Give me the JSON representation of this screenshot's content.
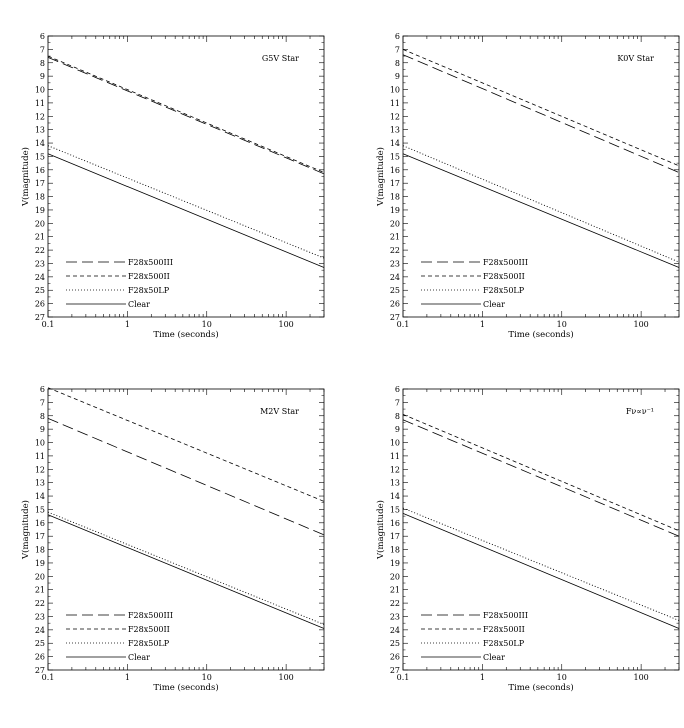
{
  "figure": {
    "background": "#ffffff",
    "ink": "#000000"
  },
  "line_styles": {
    "F28x500III": "long-dash",
    "F28x500II": "short-dash",
    "F28x50LP": "dotted",
    "Clear": "solid"
  },
  "chart_data": [
    {
      "type": "line",
      "annotation": "G5V Star",
      "xlabel": "Time (seconds)",
      "ylabel": "V(magnitude)",
      "xscale": "log",
      "xlim": [
        0.1,
        300
      ],
      "ylim": [
        27,
        6
      ],
      "y_inverted": true,
      "xtick_labels": [
        "0.1",
        "1",
        "10",
        "100"
      ],
      "ytick_labels": [
        "6",
        "7",
        "8",
        "9",
        "10",
        "11",
        "12",
        "13",
        "14",
        "15",
        "16",
        "17",
        "18",
        "19",
        "20",
        "21",
        "22",
        "23",
        "24",
        "25",
        "26",
        "27"
      ],
      "grid": false,
      "legend_position": "bottom-left",
      "series": [
        {
          "name": "F28x500III",
          "x": [
            0.1,
            300
          ],
          "y": [
            7.6,
            16.3
          ]
        },
        {
          "name": "F28x500II",
          "x": [
            0.1,
            300
          ],
          "y": [
            7.5,
            16.2
          ]
        },
        {
          "name": "F28x50LP",
          "x": [
            0.1,
            300
          ],
          "y": [
            14.2,
            22.6
          ]
        },
        {
          "name": "Clear",
          "x": [
            0.1,
            300
          ],
          "y": [
            14.8,
            23.3
          ]
        }
      ]
    },
    {
      "type": "line",
      "annotation": "K0V Star",
      "xlabel": "Time (seconds)",
      "ylabel": "V(magnitude)",
      "xscale": "log",
      "xlim": [
        0.1,
        300
      ],
      "ylim": [
        27,
        6
      ],
      "y_inverted": true,
      "xtick_labels": [
        "0.1",
        "1",
        "10",
        "100"
      ],
      "ytick_labels": [
        "6",
        "7",
        "8",
        "9",
        "10",
        "11",
        "12",
        "13",
        "14",
        "15",
        "16",
        "17",
        "18",
        "19",
        "20",
        "21",
        "22",
        "23",
        "24",
        "25",
        "26",
        "27"
      ],
      "grid": false,
      "legend_position": "bottom-left",
      "series": [
        {
          "name": "F28x500III",
          "x": [
            0.1,
            300
          ],
          "y": [
            7.4,
            16.2
          ]
        },
        {
          "name": "F28x500II",
          "x": [
            0.1,
            300
          ],
          "y": [
            7.0,
            15.7
          ]
        },
        {
          "name": "F28x50LP",
          "x": [
            0.1,
            300
          ],
          "y": [
            14.2,
            22.9
          ]
        },
        {
          "name": "Clear",
          "x": [
            0.1,
            300
          ],
          "y": [
            14.8,
            23.3
          ]
        }
      ]
    },
    {
      "type": "line",
      "annotation": "M2V Star",
      "xlabel": "Time (seconds)",
      "ylabel": "V(magnitude)",
      "xscale": "log",
      "xlim": [
        0.1,
        300
      ],
      "ylim": [
        27,
        6
      ],
      "y_inverted": true,
      "xtick_labels": [
        "0.1",
        "1",
        "10",
        "100"
      ],
      "ytick_labels": [
        "6",
        "7",
        "8",
        "9",
        "10",
        "11",
        "12",
        "13",
        "14",
        "15",
        "16",
        "17",
        "18",
        "19",
        "20",
        "21",
        "22",
        "23",
        "24",
        "25",
        "26",
        "27"
      ],
      "grid": false,
      "legend_position": "bottom-left",
      "series": [
        {
          "name": "F28x500III",
          "x": [
            0.1,
            300
          ],
          "y": [
            8.2,
            16.9
          ]
        },
        {
          "name": "F28x500II",
          "x": [
            0.1,
            300
          ],
          "y": [
            5.9,
            14.4
          ]
        },
        {
          "name": "F28x50LP",
          "x": [
            0.1,
            300
          ],
          "y": [
            15.2,
            23.6
          ]
        },
        {
          "name": "Clear",
          "x": [
            0.1,
            300
          ],
          "y": [
            15.4,
            23.9
          ]
        }
      ]
    },
    {
      "type": "line",
      "annotation": "Fν∝ν⁻¹",
      "xlabel": "Time (seconds)",
      "ylabel": "V(magnitude)",
      "xscale": "log",
      "xlim": [
        0.1,
        300
      ],
      "ylim": [
        27,
        6
      ],
      "y_inverted": true,
      "xtick_labels": [
        "0.1",
        "1",
        "10",
        "100"
      ],
      "ytick_labels": [
        "6",
        "7",
        "8",
        "9",
        "10",
        "11",
        "12",
        "13",
        "14",
        "15",
        "16",
        "17",
        "18",
        "19",
        "20",
        "21",
        "22",
        "23",
        "24",
        "25",
        "26",
        "27"
      ],
      "grid": false,
      "legend_position": "bottom-left",
      "series": [
        {
          "name": "F28x500III",
          "x": [
            0.1,
            300
          ],
          "y": [
            8.3,
            17.0
          ]
        },
        {
          "name": "F28x500II",
          "x": [
            0.1,
            300
          ],
          "y": [
            7.9,
            16.6
          ]
        },
        {
          "name": "F28x50LP",
          "x": [
            0.1,
            300
          ],
          "y": [
            14.9,
            23.3
          ]
        },
        {
          "name": "Clear",
          "x": [
            0.1,
            300
          ],
          "y": [
            15.3,
            23.9
          ]
        }
      ]
    }
  ]
}
